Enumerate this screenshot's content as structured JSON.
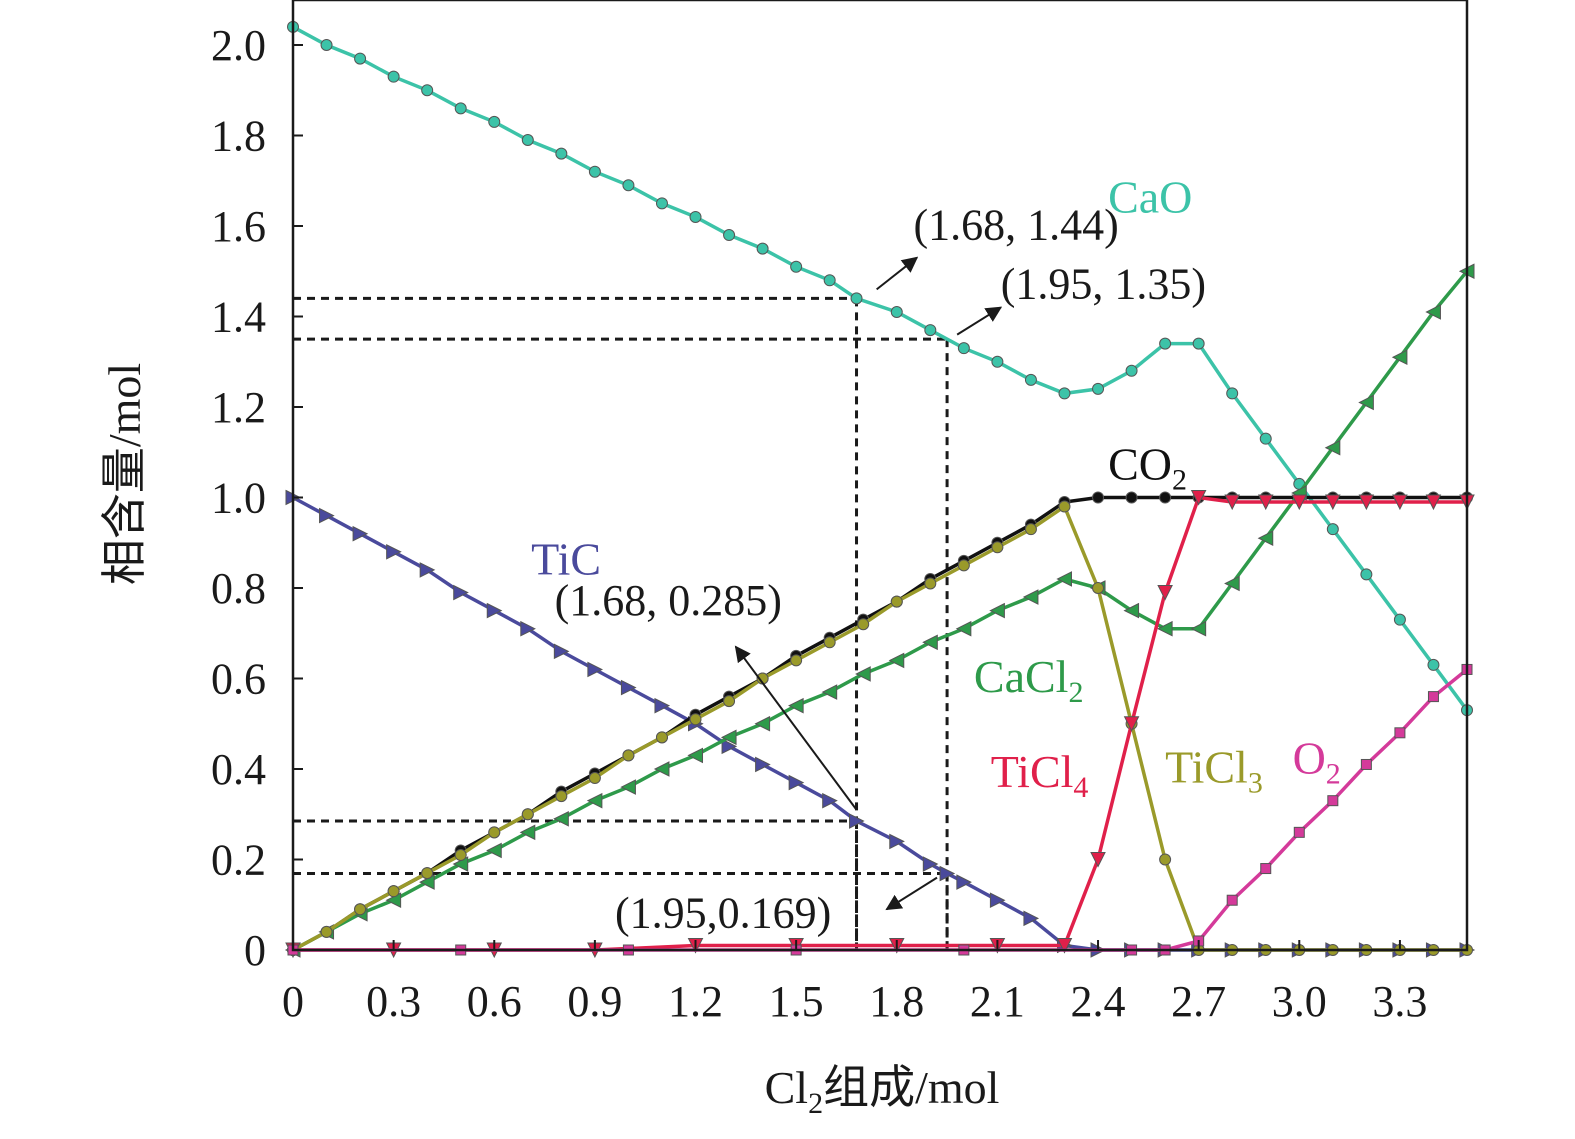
{
  "chart_data": {
    "type": "line",
    "xlabel_main": "Cl",
    "xlabel_sub": "2",
    "xlabel_rest": "组成/mol",
    "ylabel": "相含量/mol",
    "xlim": [
      0,
      3.5
    ],
    "ylim": [
      0,
      2.1
    ],
    "x_ticks": [
      {
        "value": 0,
        "label": "0"
      },
      {
        "value": 0.3,
        "label": "0.3"
      },
      {
        "value": 0.6,
        "label": "0.6"
      },
      {
        "value": 0.9,
        "label": "0.9"
      },
      {
        "value": 1.2,
        "label": "1.2"
      },
      {
        "value": 1.5,
        "label": "1.5"
      },
      {
        "value": 1.8,
        "label": "1.8"
      },
      {
        "value": 2.1,
        "label": "2.1"
      },
      {
        "value": 2.4,
        "label": "2.4"
      },
      {
        "value": 2.7,
        "label": "2.7"
      },
      {
        "value": 3.0,
        "label": "3.0"
      },
      {
        "value": 3.3,
        "label": "3.3"
      }
    ],
    "y_ticks": [
      {
        "value": 0,
        "label": "0"
      },
      {
        "value": 0.2,
        "label": "0.2"
      },
      {
        "value": 0.4,
        "label": "0.4"
      },
      {
        "value": 0.6,
        "label": "0.6"
      },
      {
        "value": 0.8,
        "label": "0.8"
      },
      {
        "value": 1.0,
        "label": "1.0"
      },
      {
        "value": 1.2,
        "label": "1.2"
      },
      {
        "value": 1.4,
        "label": "1.4"
      },
      {
        "value": 1.6,
        "label": "1.6"
      },
      {
        "value": 1.8,
        "label": "1.8"
      },
      {
        "value": 2.0,
        "label": "2.0"
      }
    ],
    "grid": false,
    "series": [
      {
        "name": "CaO",
        "name_main": "CaO",
        "name_sub": "",
        "color": "#3cc3a8",
        "marker": "circle",
        "label_x": 2.43,
        "label_y": 1.63,
        "points": [
          [
            0,
            2.04
          ],
          [
            0.1,
            2.0
          ],
          [
            0.2,
            1.97
          ],
          [
            0.3,
            1.93
          ],
          [
            0.4,
            1.9
          ],
          [
            0.5,
            1.86
          ],
          [
            0.6,
            1.83
          ],
          [
            0.7,
            1.79
          ],
          [
            0.8,
            1.76
          ],
          [
            0.9,
            1.72
          ],
          [
            1.0,
            1.69
          ],
          [
            1.1,
            1.65
          ],
          [
            1.2,
            1.62
          ],
          [
            1.3,
            1.58
          ],
          [
            1.4,
            1.55
          ],
          [
            1.5,
            1.51
          ],
          [
            1.6,
            1.48
          ],
          [
            1.68,
            1.44
          ],
          [
            1.8,
            1.41
          ],
          [
            1.9,
            1.37
          ],
          [
            2.0,
            1.33
          ],
          [
            2.1,
            1.3
          ],
          [
            2.2,
            1.26
          ],
          [
            2.3,
            1.23
          ],
          [
            2.4,
            1.24
          ],
          [
            2.5,
            1.28
          ],
          [
            2.6,
            1.34
          ],
          [
            2.7,
            1.34
          ],
          [
            2.8,
            1.23
          ],
          [
            2.9,
            1.13
          ],
          [
            3.0,
            1.03
          ],
          [
            3.1,
            0.93
          ],
          [
            3.2,
            0.83
          ],
          [
            3.3,
            0.73
          ],
          [
            3.4,
            0.63
          ],
          [
            3.5,
            0.53
          ]
        ]
      },
      {
        "name": "TiC",
        "name_main": "TiC",
        "name_sub": "",
        "color": "#4a4a9c",
        "marker": "triangle-right",
        "label_x": 0.71,
        "label_y": 0.83,
        "points": [
          [
            0,
            1.0
          ],
          [
            0.1,
            0.96
          ],
          [
            0.2,
            0.92
          ],
          [
            0.3,
            0.88
          ],
          [
            0.4,
            0.84
          ],
          [
            0.5,
            0.79
          ],
          [
            0.6,
            0.75
          ],
          [
            0.7,
            0.71
          ],
          [
            0.8,
            0.66
          ],
          [
            0.9,
            0.62
          ],
          [
            1.0,
            0.58
          ],
          [
            1.1,
            0.54
          ],
          [
            1.2,
            0.5
          ],
          [
            1.3,
            0.45
          ],
          [
            1.4,
            0.41
          ],
          [
            1.5,
            0.37
          ],
          [
            1.6,
            0.33
          ],
          [
            1.68,
            0.285
          ],
          [
            1.8,
            0.24
          ],
          [
            1.9,
            0.19
          ],
          [
            1.95,
            0.169
          ],
          [
            2.0,
            0.15
          ],
          [
            2.1,
            0.11
          ],
          [
            2.2,
            0.07
          ],
          [
            2.3,
            0.01
          ],
          [
            2.4,
            0.0
          ],
          [
            2.5,
            0.0
          ],
          [
            2.6,
            0.0
          ],
          [
            2.7,
            0.0
          ],
          [
            2.8,
            0.0
          ],
          [
            2.9,
            0.0
          ],
          [
            3.0,
            0.0
          ],
          [
            3.1,
            0.0
          ],
          [
            3.2,
            0.0
          ],
          [
            3.3,
            0.0
          ],
          [
            3.4,
            0.0
          ],
          [
            3.5,
            0.0
          ]
        ]
      },
      {
        "name": "CO2",
        "name_main": "CO",
        "name_sub": "2",
        "color": "#111111",
        "marker": "circle",
        "label_x": 2.43,
        "label_y": 1.04,
        "points": [
          [
            0,
            0.0
          ],
          [
            0.1,
            0.04
          ],
          [
            0.2,
            0.09
          ],
          [
            0.3,
            0.13
          ],
          [
            0.4,
            0.17
          ],
          [
            0.5,
            0.22
          ],
          [
            0.6,
            0.26
          ],
          [
            0.7,
            0.3
          ],
          [
            0.8,
            0.35
          ],
          [
            0.9,
            0.39
          ],
          [
            1.0,
            0.43
          ],
          [
            1.1,
            0.47
          ],
          [
            1.2,
            0.52
          ],
          [
            1.3,
            0.56
          ],
          [
            1.4,
            0.6
          ],
          [
            1.5,
            0.65
          ],
          [
            1.6,
            0.69
          ],
          [
            1.7,
            0.73
          ],
          [
            1.8,
            0.77
          ],
          [
            1.9,
            0.82
          ],
          [
            2.0,
            0.86
          ],
          [
            2.1,
            0.9
          ],
          [
            2.2,
            0.94
          ],
          [
            2.3,
            0.99
          ],
          [
            2.4,
            1.0
          ],
          [
            2.5,
            1.0
          ],
          [
            2.6,
            1.0
          ],
          [
            2.7,
            1.0
          ],
          [
            2.8,
            1.0
          ],
          [
            2.9,
            1.0
          ],
          [
            3.0,
            1.0
          ],
          [
            3.1,
            1.0
          ],
          [
            3.2,
            1.0
          ],
          [
            3.3,
            1.0
          ],
          [
            3.4,
            1.0
          ],
          [
            3.5,
            1.0
          ]
        ]
      },
      {
        "name": "CaCl2",
        "name_main": "CaCl",
        "name_sub": "2",
        "color": "#2e9a4a",
        "marker": "triangle-left",
        "label_x": 2.03,
        "label_y": 0.57,
        "points": [
          [
            0,
            0.0
          ],
          [
            0.1,
            0.04
          ],
          [
            0.2,
            0.08
          ],
          [
            0.3,
            0.11
          ],
          [
            0.4,
            0.15
          ],
          [
            0.5,
            0.19
          ],
          [
            0.6,
            0.22
          ],
          [
            0.7,
            0.26
          ],
          [
            0.8,
            0.29
          ],
          [
            0.9,
            0.33
          ],
          [
            1.0,
            0.36
          ],
          [
            1.1,
            0.4
          ],
          [
            1.2,
            0.43
          ],
          [
            1.3,
            0.47
          ],
          [
            1.4,
            0.5
          ],
          [
            1.5,
            0.54
          ],
          [
            1.6,
            0.57
          ],
          [
            1.7,
            0.61
          ],
          [
            1.8,
            0.64
          ],
          [
            1.9,
            0.68
          ],
          [
            2.0,
            0.71
          ],
          [
            2.1,
            0.75
          ],
          [
            2.2,
            0.78
          ],
          [
            2.3,
            0.82
          ],
          [
            2.4,
            0.8
          ],
          [
            2.5,
            0.75
          ],
          [
            2.6,
            0.71
          ],
          [
            2.7,
            0.71
          ],
          [
            2.8,
            0.81
          ],
          [
            2.9,
            0.91
          ],
          [
            3.0,
            1.01
          ],
          [
            3.1,
            1.11
          ],
          [
            3.2,
            1.21
          ],
          [
            3.3,
            1.31
          ],
          [
            3.4,
            1.41
          ],
          [
            3.5,
            1.5
          ]
        ]
      },
      {
        "name": "TiCl3",
        "name_main": "TiCl",
        "name_sub": "3",
        "color": "#9a9a2a",
        "marker": "circle",
        "label_x": 2.6,
        "label_y": 0.37,
        "points": [
          [
            0,
            0.0
          ],
          [
            0.1,
            0.04
          ],
          [
            0.2,
            0.09
          ],
          [
            0.3,
            0.13
          ],
          [
            0.4,
            0.17
          ],
          [
            0.5,
            0.21
          ],
          [
            0.6,
            0.26
          ],
          [
            0.7,
            0.3
          ],
          [
            0.8,
            0.34
          ],
          [
            0.9,
            0.38
          ],
          [
            1.0,
            0.43
          ],
          [
            1.1,
            0.47
          ],
          [
            1.2,
            0.51
          ],
          [
            1.3,
            0.55
          ],
          [
            1.4,
            0.6
          ],
          [
            1.5,
            0.64
          ],
          [
            1.6,
            0.68
          ],
          [
            1.7,
            0.72
          ],
          [
            1.8,
            0.77
          ],
          [
            1.9,
            0.81
          ],
          [
            2.0,
            0.85
          ],
          [
            2.1,
            0.89
          ],
          [
            2.2,
            0.93
          ],
          [
            2.3,
            0.98
          ],
          [
            2.4,
            0.8
          ],
          [
            2.5,
            0.5
          ],
          [
            2.6,
            0.2
          ],
          [
            2.7,
            0.0
          ],
          [
            2.8,
            0.0
          ],
          [
            2.9,
            0.0
          ],
          [
            3.0,
            0.0
          ],
          [
            3.1,
            0.0
          ],
          [
            3.2,
            0.0
          ],
          [
            3.3,
            0.0
          ],
          [
            3.4,
            0.0
          ],
          [
            3.5,
            0.0
          ]
        ]
      },
      {
        "name": "TiCl4",
        "name_main": "TiCl",
        "name_sub": "4",
        "color": "#e0204a",
        "marker": "triangle-down",
        "label_x": 2.08,
        "label_y": 0.36,
        "points": [
          [
            0,
            0.0
          ],
          [
            0.3,
            0.0
          ],
          [
            0.6,
            0.0
          ],
          [
            0.9,
            0.0
          ],
          [
            1.2,
            0.01
          ],
          [
            1.5,
            0.01
          ],
          [
            1.8,
            0.01
          ],
          [
            2.1,
            0.01
          ],
          [
            2.3,
            0.01
          ],
          [
            2.4,
            0.2
          ],
          [
            2.5,
            0.5
          ],
          [
            2.6,
            0.79
          ],
          [
            2.7,
            1.0
          ],
          [
            2.8,
            0.99
          ],
          [
            2.9,
            0.99
          ],
          [
            3.0,
            0.99
          ],
          [
            3.1,
            0.99
          ],
          [
            3.2,
            0.99
          ],
          [
            3.3,
            0.99
          ],
          [
            3.4,
            0.99
          ],
          [
            3.5,
            0.99
          ]
        ]
      },
      {
        "name": "O2",
        "name_main": "O",
        "name_sub": "2",
        "color": "#d43a9a",
        "marker": "square",
        "label_x": 2.98,
        "label_y": 0.39,
        "points": [
          [
            0,
            0.0
          ],
          [
            0.5,
            0.0
          ],
          [
            1.0,
            0.0
          ],
          [
            1.5,
            0.0
          ],
          [
            2.0,
            0.0
          ],
          [
            2.5,
            0.0
          ],
          [
            2.6,
            0.0
          ],
          [
            2.7,
            0.02
          ],
          [
            2.8,
            0.11
          ],
          [
            2.9,
            0.18
          ],
          [
            3.0,
            0.26
          ],
          [
            3.1,
            0.33
          ],
          [
            3.2,
            0.41
          ],
          [
            3.3,
            0.48
          ],
          [
            3.4,
            0.56
          ],
          [
            3.5,
            0.62
          ]
        ]
      }
    ],
    "annotations": [
      {
        "text": "(1.68, 1.44)",
        "x": 1.68,
        "y": 1.44,
        "text_x": 1.85,
        "text_y": 1.57,
        "arrow_from": [
          1.74,
          1.46
        ],
        "arrow_to": [
          1.86,
          1.53
        ]
      },
      {
        "text": "(1.95, 1.35)",
        "x": 1.95,
        "y": 1.35,
        "text_x": 2.11,
        "text_y": 1.44,
        "arrow_from": [
          1.98,
          1.36
        ],
        "arrow_to": [
          2.11,
          1.42
        ]
      },
      {
        "text": "(1.68, 0.285)",
        "x": 1.68,
        "y": 0.285,
        "text_x": 0.78,
        "text_y": 0.74,
        "arrow_from": [
          1.68,
          0.31
        ],
        "arrow_to": [
          1.32,
          0.67
        ]
      },
      {
        "text": "(1.95,0.169)",
        "x": 1.95,
        "y": 0.169,
        "text_x": 0.96,
        "text_y": 0.05,
        "arrow_from": [
          1.92,
          0.16
        ],
        "arrow_to": [
          1.77,
          0.09
        ]
      }
    ]
  }
}
